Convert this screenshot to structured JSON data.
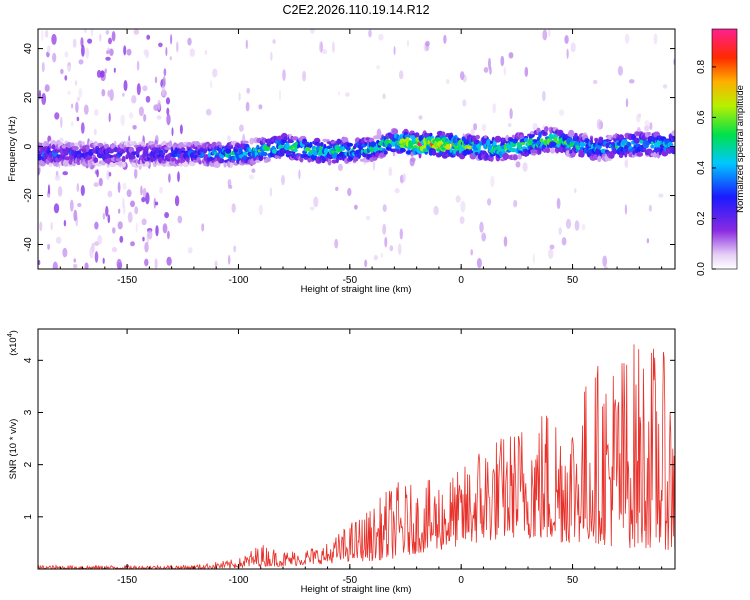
{
  "title": "C2E2.2026.110.19.14.R12",
  "chart_data": [
    {
      "type": "heatmap",
      "name": "spectrogram",
      "xlabel": "Height of straight line (km)",
      "ylabel": "Frequency (Hz)",
      "xlim": [
        -190,
        96
      ],
      "ylim": [
        -50,
        48
      ],
      "xticks": [
        -150,
        -100,
        -50,
        0,
        50
      ],
      "yticks": [
        -40,
        -20,
        0,
        20,
        40
      ],
      "ridge": {
        "description": "high-amplitude band near 0 Hz",
        "x": [
          -188,
          -150,
          -120,
          -100,
          -80,
          -60,
          -40,
          -30,
          -20,
          -10,
          0,
          20,
          40,
          60,
          80,
          95
        ],
        "freq": [
          -3,
          -3,
          -3,
          -3,
          0,
          -2,
          -1,
          2,
          1,
          1,
          0,
          -1,
          3,
          -1,
          1,
          1
        ],
        "peak_amplitude": [
          0.35,
          0.3,
          0.35,
          0.55,
          0.6,
          0.6,
          0.55,
          0.7,
          0.9,
          0.85,
          0.7,
          0.6,
          0.65,
          0.5,
          0.55,
          0.5
        ]
      },
      "colorbar": {
        "label": "Normalized spectral amplitude",
        "range": [
          0,
          0.95
        ],
        "ticks": [
          "0.0",
          "0.2",
          "0.4",
          "0.6",
          "0.8"
        ]
      }
    },
    {
      "type": "line",
      "name": "snr",
      "xlabel": "Height of straight line (km)",
      "ylabel": "SNR (10 * v/v)",
      "exponent_label": "(x10",
      "exponent_power": "4",
      "exponent_close": ")",
      "xlim": [
        -190,
        96
      ],
      "ylim": [
        0,
        4.6
      ],
      "xticks": [
        -150,
        -100,
        -50,
        0,
        50
      ],
      "yticks": [
        1,
        2,
        3,
        4
      ],
      "color": "#e8312a",
      "envelope": {
        "x": [
          -190,
          -150,
          -120,
          -100,
          -90,
          -80,
          -70,
          -60,
          -50,
          -40,
          -30,
          -20,
          -10,
          0,
          10,
          20,
          30,
          40,
          50,
          60,
          70,
          80,
          90,
          96
        ],
        "upper": [
          0.07,
          0.07,
          0.08,
          0.2,
          0.5,
          0.35,
          0.4,
          0.5,
          0.9,
          1.2,
          1.7,
          1.6,
          1.8,
          1.9,
          2.6,
          2.6,
          3.0,
          3.3,
          3.2,
          4.0,
          4.2,
          4.5,
          4.3,
          3.3
        ],
        "lower": [
          0.0,
          0.0,
          0.0,
          0.02,
          0.05,
          0.05,
          0.08,
          0.1,
          0.15,
          0.15,
          0.2,
          0.3,
          0.35,
          0.45,
          0.5,
          0.6,
          0.6,
          0.5,
          0.5,
          0.5,
          0.4,
          0.4,
          0.4,
          0.3
        ]
      }
    }
  ]
}
